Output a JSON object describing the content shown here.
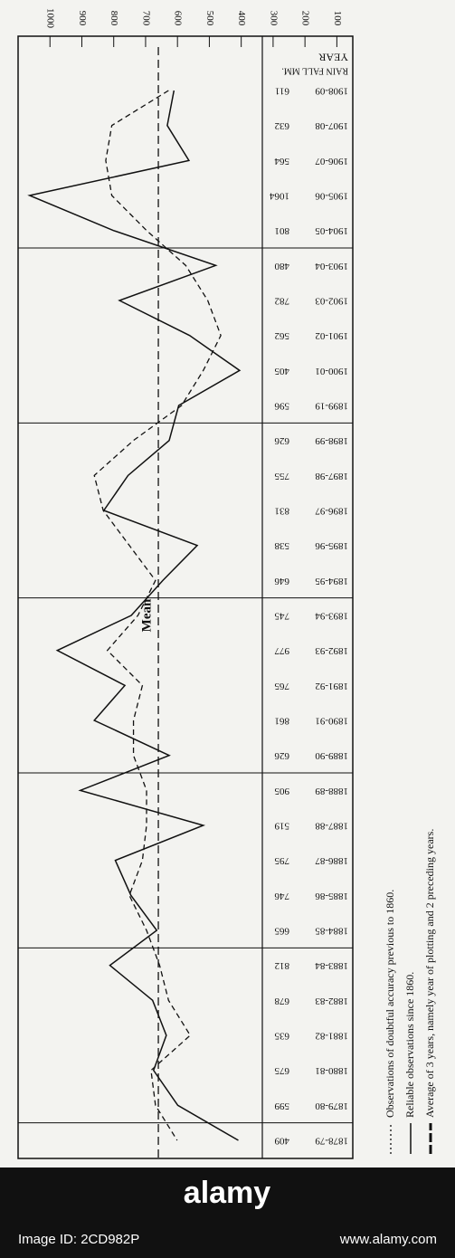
{
  "chart_data": {
    "type": "line",
    "header": [
      "YEAR",
      "RAIN FALL MM."
    ],
    "categories": [
      "1908-09",
      "1907-08",
      "1906-07",
      "1905-06",
      "1904-05",
      "1903-04",
      "1902-03",
      "1901-02",
      "1900-01",
      "1899-19",
      "1898-99",
      "1897-98",
      "1896-97",
      "1895-96",
      "1894-95",
      "1893-94",
      "1892-93",
      "1891-92",
      "1890-91",
      "1889-90",
      "1888-89",
      "1887-88",
      "1886-87",
      "1885-86",
      "1884-85",
      "1883-84",
      "1882-83",
      "1881-82",
      "1880-81",
      "1879-80",
      "1878-79"
    ],
    "series": [
      {
        "name": "Reliable observations since 1860.",
        "color": "#111111",
        "style": "solid",
        "values": [
          611,
          632,
          564,
          1064,
          801,
          480,
          782,
          562,
          405,
          596,
          626,
          755,
          831,
          538,
          646,
          745,
          977,
          765,
          861,
          626,
          905,
          519,
          795,
          746,
          665,
          812,
          678,
          635,
          675,
          599,
          409
        ]
      },
      {
        "name": "Average of 3 years, namely year of plotting and 2 preceding years.",
        "color": "#111111",
        "style": "dashed",
        "values": [
          628,
          806,
          825,
          806,
          697,
          574,
          505,
          464,
          519,
          587,
          738,
          861,
          833,
          751,
          669,
          724,
          820,
          710,
          738,
          738,
          697,
          697,
          710,
          751,
          697,
          656,
          628,
          560,
          683,
          669,
          601
        ]
      }
    ],
    "annotations": [
      "Observations of doubtful accuracy previous to 1860."
    ],
    "mean": {
      "label": "Mean",
      "value": 660
    },
    "ylim": [
      1100,
      50
    ],
    "yticks": [
      1000,
      900,
      800,
      700,
      600,
      500,
      400,
      300,
      200,
      100
    ]
  },
  "watermark": {
    "brand": "alamy",
    "image_id": "Image ID: 2CD982P",
    "site": "www.alamy.com"
  }
}
